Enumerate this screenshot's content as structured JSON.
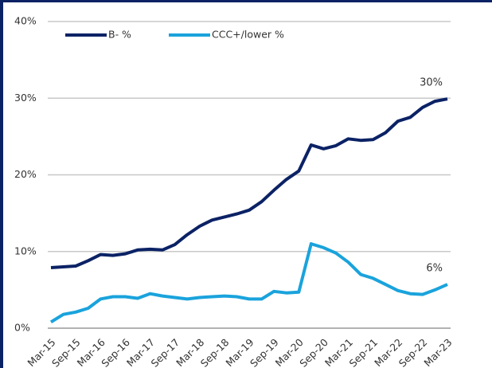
{
  "chart_data": {
    "type": "line",
    "categories": [
      "Mar-15",
      null,
      "Sep-15",
      null,
      "Mar-16",
      null,
      "Sep-16",
      null,
      "Mar-17",
      null,
      "Sep-17",
      null,
      "Mar-18",
      null,
      "Sep-18",
      null,
      "Mar-19",
      null,
      "Sep-19",
      null,
      "Mar-20",
      null,
      "Sep-20",
      null,
      "Mar-21",
      null,
      "Sep-21",
      null,
      "Mar-22",
      null,
      "Sep-22",
      null,
      "Mar-23"
    ],
    "series": [
      {
        "name": "B- %",
        "color": "#0b2265",
        "values": [
          7.9,
          8.0,
          8.1,
          8.8,
          9.6,
          9.5,
          9.7,
          10.2,
          10.3,
          10.2,
          10.9,
          12.2,
          13.3,
          14.1,
          14.5,
          14.9,
          15.4,
          16.5,
          18.0,
          19.4,
          20.5,
          23.9,
          23.4,
          23.8,
          24.7,
          24.5,
          24.6,
          25.5,
          27.0,
          27.5,
          28.8,
          29.6,
          29.9
        ]
      },
      {
        "name": "CCC+/lower %",
        "color": "#1aa3dc",
        "values": [
          0.8,
          1.8,
          2.1,
          2.6,
          3.8,
          4.1,
          4.1,
          3.9,
          4.5,
          4.2,
          4.0,
          3.8,
          4.0,
          4.1,
          4.2,
          4.1,
          3.8,
          3.8,
          4.8,
          4.6,
          4.7,
          11.0,
          10.5,
          9.8,
          8.6,
          7.0,
          6.5,
          5.7,
          4.9,
          4.5,
          4.4,
          5.0,
          5.7
        ]
      }
    ],
    "annotations": [
      "30%",
      "6%"
    ],
    "ylim": [
      0,
      40
    ],
    "yticks": [
      {
        "value": 0,
        "label": "0%"
      },
      {
        "value": 10,
        "label": "10%"
      },
      {
        "value": 20,
        "label": "20%"
      },
      {
        "value": 30,
        "label": "30%"
      },
      {
        "value": 40,
        "label": "40%"
      }
    ],
    "grid": true,
    "legend": "top-left"
  }
}
